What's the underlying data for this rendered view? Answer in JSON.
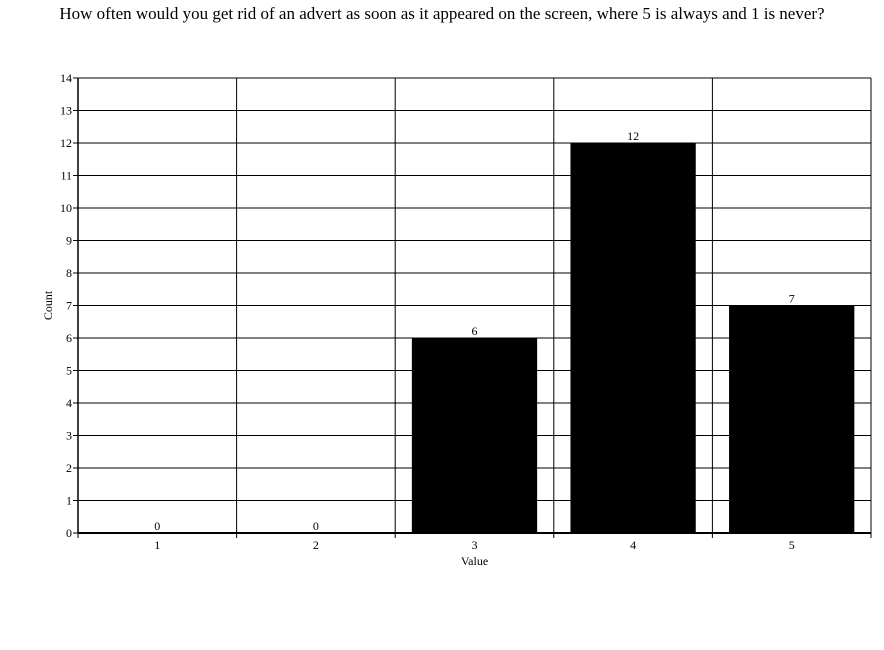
{
  "chart_data": {
    "type": "bar",
    "title": "How often would you get rid of an advert as soon as it appeared on the screen, where 5 is always and 1 is never?",
    "xlabel": "Value",
    "ylabel": "Count",
    "categories": [
      "1",
      "2",
      "3",
      "4",
      "5"
    ],
    "values": [
      0,
      0,
      6,
      12,
      7
    ],
    "ylim": [
      0,
      14
    ],
    "yticks": [
      0,
      1,
      2,
      3,
      4,
      5,
      6,
      7,
      8,
      9,
      10,
      11,
      12,
      13,
      14
    ],
    "grid": true,
    "legend": "none",
    "bar_color": "#000000"
  }
}
